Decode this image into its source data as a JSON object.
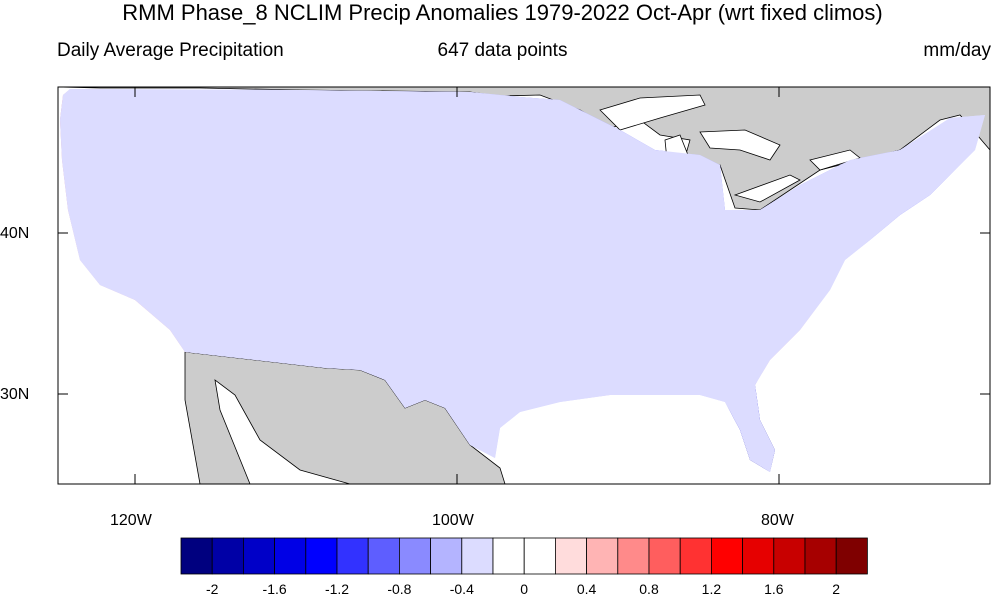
{
  "title": "RMM Phase_8 NCLIM Precip Anomalies 1979-2022 Oct-Apr (wrt fixed climos)",
  "left_string": "Daily Average Precipitation",
  "center_string": "647 data points",
  "right_string": "mm/day",
  "map": {
    "region": "Contiguous United States",
    "lat_labels": [
      "40N",
      "30N"
    ],
    "lon_labels": [
      "120W",
      "100W",
      "80W"
    ],
    "missing_color": "#cccccc",
    "lat_range": [
      24.5,
      49.5
    ],
    "lon_range": [
      -125,
      -67
    ]
  },
  "colorbar": {
    "levels": [
      "-2",
      "-1.6",
      "-1.2",
      "-0.8",
      "-0.4",
      "0",
      "0.4",
      "0.8",
      "1.2",
      "1.6",
      "2"
    ],
    "colors": [
      "#00007f",
      "#0000a6",
      "#0000c8",
      "#0000e6",
      "#0000ff",
      "#3232ff",
      "#5e5eff",
      "#8a8aff",
      "#b4b4ff",
      "#dcdcff",
      "#ffffff",
      "#ffffff",
      "#ffdcdc",
      "#ffb4b4",
      "#ff8a8a",
      "#ff5e5e",
      "#ff3232",
      "#ff0000",
      "#e60000",
      "#c80000",
      "#a60000",
      "#7f0000"
    ]
  }
}
